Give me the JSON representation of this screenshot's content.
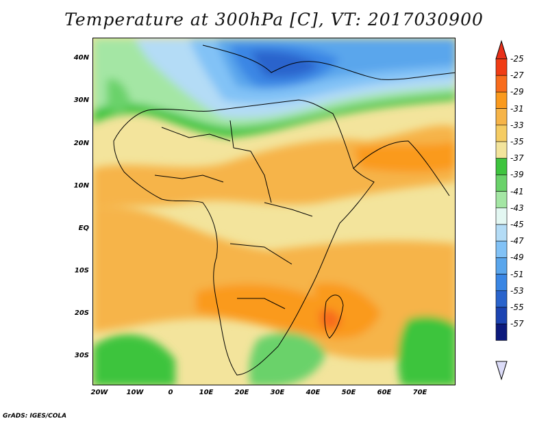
{
  "title": "Temperature at 300hPa [C], VT: 2017030900",
  "credit": "GrADS: IGES/COLA",
  "lat_labels": [
    "40N",
    "30N",
    "20N",
    "10N",
    "EQ",
    "10S",
    "20S",
    "30S"
  ],
  "lon_labels": [
    "20W",
    "10W",
    "0",
    "10E",
    "20E",
    "30E",
    "40E",
    "50E",
    "60E",
    "70E"
  ],
  "legend": {
    "labels": [
      "-25",
      "-27",
      "-29",
      "-31",
      "-33",
      "-35",
      "-37",
      "-39",
      "-41",
      "-43",
      "-45",
      "-47",
      "-49",
      "-51",
      "-53",
      "-55",
      "-57"
    ],
    "colors": [
      "#f03c14",
      "#f86c1c",
      "#fa9a1e",
      "#f6b448",
      "#f5cc63",
      "#f3e49c",
      "#3ec43e",
      "#6ad26a",
      "#a4e6a4",
      "#e3f7f2",
      "#b4dcf6",
      "#82c2f6",
      "#5aa6ec",
      "#3a86e4",
      "#2a64cc",
      "#1c44b2",
      "#0c1a7c"
    ],
    "top_arrow_color": "#e8301a",
    "bottom_arrow_color": "#dcdcf8"
  }
}
